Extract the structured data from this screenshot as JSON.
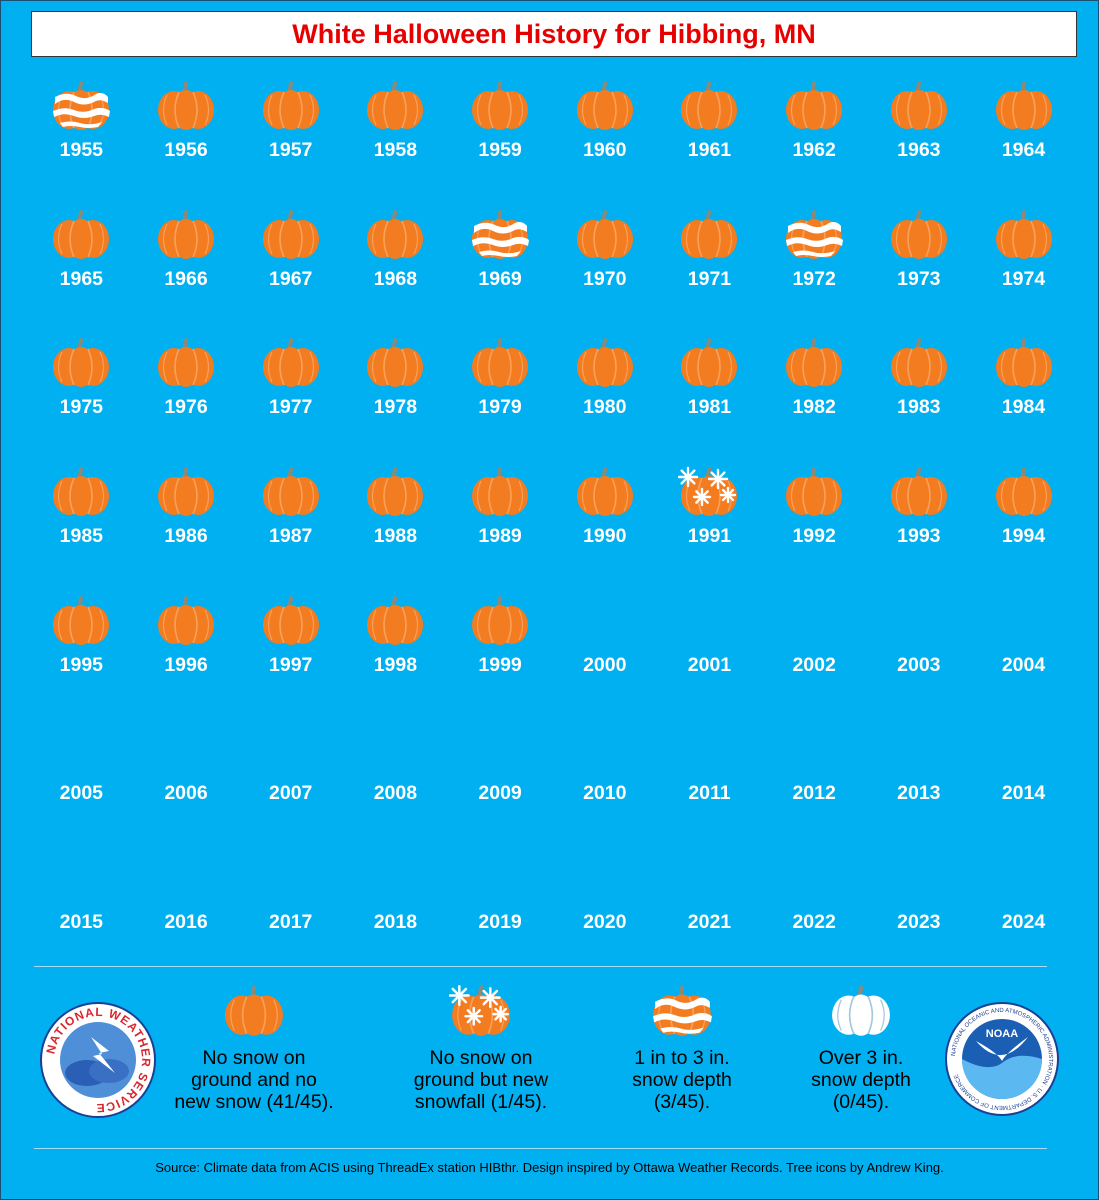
{
  "title": "White Halloween History for Hibbing, MN",
  "colors": {
    "background": "#00b0f0",
    "pumpkin": "#f47c20",
    "title_text": "#e60000",
    "snow": "#ffffff"
  },
  "icons": {
    "none": "plain-pumpkin-icon",
    "snowfall": "snowflake-pumpkin-icon",
    "depth_1_3": "snow-striped-pumpkin-icon",
    "depth_over_3": "white-pumpkin-icon"
  },
  "years": [
    {
      "year": "1955",
      "category": "depth_1_3"
    },
    {
      "year": "1956",
      "category": "none"
    },
    {
      "year": "1957",
      "category": "none"
    },
    {
      "year": "1958",
      "category": "none"
    },
    {
      "year": "1959",
      "category": "none"
    },
    {
      "year": "1960",
      "category": "none"
    },
    {
      "year": "1961",
      "category": "none"
    },
    {
      "year": "1962",
      "category": "none"
    },
    {
      "year": "1963",
      "category": "none"
    },
    {
      "year": "1964",
      "category": "none"
    },
    {
      "year": "1965",
      "category": "none"
    },
    {
      "year": "1966",
      "category": "none"
    },
    {
      "year": "1967",
      "category": "none"
    },
    {
      "year": "1968",
      "category": "none"
    },
    {
      "year": "1969",
      "category": "depth_1_3"
    },
    {
      "year": "1970",
      "category": "none"
    },
    {
      "year": "1971",
      "category": "none"
    },
    {
      "year": "1972",
      "category": "depth_1_3"
    },
    {
      "year": "1973",
      "category": "none"
    },
    {
      "year": "1974",
      "category": "none"
    },
    {
      "year": "1975",
      "category": "none"
    },
    {
      "year": "1976",
      "category": "none"
    },
    {
      "year": "1977",
      "category": "none"
    },
    {
      "year": "1978",
      "category": "none"
    },
    {
      "year": "1979",
      "category": "none"
    },
    {
      "year": "1980",
      "category": "none"
    },
    {
      "year": "1981",
      "category": "none"
    },
    {
      "year": "1982",
      "category": "none"
    },
    {
      "year": "1983",
      "category": "none"
    },
    {
      "year": "1984",
      "category": "none"
    },
    {
      "year": "1985",
      "category": "none"
    },
    {
      "year": "1986",
      "category": "none"
    },
    {
      "year": "1987",
      "category": "none"
    },
    {
      "year": "1988",
      "category": "none"
    },
    {
      "year": "1989",
      "category": "none"
    },
    {
      "year": "1990",
      "category": "none"
    },
    {
      "year": "1991",
      "category": "snowfall"
    },
    {
      "year": "1992",
      "category": "none"
    },
    {
      "year": "1993",
      "category": "none"
    },
    {
      "year": "1994",
      "category": "none"
    },
    {
      "year": "1995",
      "category": "none"
    },
    {
      "year": "1996",
      "category": "none"
    },
    {
      "year": "1997",
      "category": "none"
    },
    {
      "year": "1998",
      "category": "none"
    },
    {
      "year": "1999",
      "category": "none"
    },
    {
      "year": "2000",
      "category": ""
    },
    {
      "year": "2001",
      "category": ""
    },
    {
      "year": "2002",
      "category": ""
    },
    {
      "year": "2003",
      "category": ""
    },
    {
      "year": "2004",
      "category": ""
    },
    {
      "year": "2005",
      "category": ""
    },
    {
      "year": "2006",
      "category": ""
    },
    {
      "year": "2007",
      "category": ""
    },
    {
      "year": "2008",
      "category": ""
    },
    {
      "year": "2009",
      "category": ""
    },
    {
      "year": "2010",
      "category": ""
    },
    {
      "year": "2011",
      "category": ""
    },
    {
      "year": "2012",
      "category": ""
    },
    {
      "year": "2013",
      "category": ""
    },
    {
      "year": "2014",
      "category": ""
    },
    {
      "year": "2015",
      "category": ""
    },
    {
      "year": "2016",
      "category": ""
    },
    {
      "year": "2017",
      "category": ""
    },
    {
      "year": "2018",
      "category": ""
    },
    {
      "year": "2019",
      "category": ""
    },
    {
      "year": "2020",
      "category": ""
    },
    {
      "year": "2021",
      "category": ""
    },
    {
      "year": "2022",
      "category": ""
    },
    {
      "year": "2023",
      "category": ""
    },
    {
      "year": "2024",
      "category": ""
    }
  ],
  "legend": [
    {
      "category": "none",
      "text": "No snow on\nground and no\nnew snow (41/45)."
    },
    {
      "category": "snowfall",
      "text": "No snow on\nground but new\nsnowfall (1/45)."
    },
    {
      "category": "depth_1_3",
      "text": "1 in to 3 in.\nsnow depth\n(3/45)."
    },
    {
      "category": "depth_over_3",
      "text": "Over 3 in.\nsnow depth\n(0/45)."
    }
  ],
  "logos": {
    "nws_text": "NATIONAL WEATHER SERVICE",
    "noaa_label": "NOAA",
    "noaa_ring_text": "NATIONAL OCEANIC AND ATMOSPHERIC ADMINISTRATION · U.S. DEPARTMENT OF COMMERCE"
  },
  "source": "Source: Climate data from ACIS using ThreadEx station HIBthr. Design inspired by Ottawa Weather Records. Tree icons by Andrew King."
}
